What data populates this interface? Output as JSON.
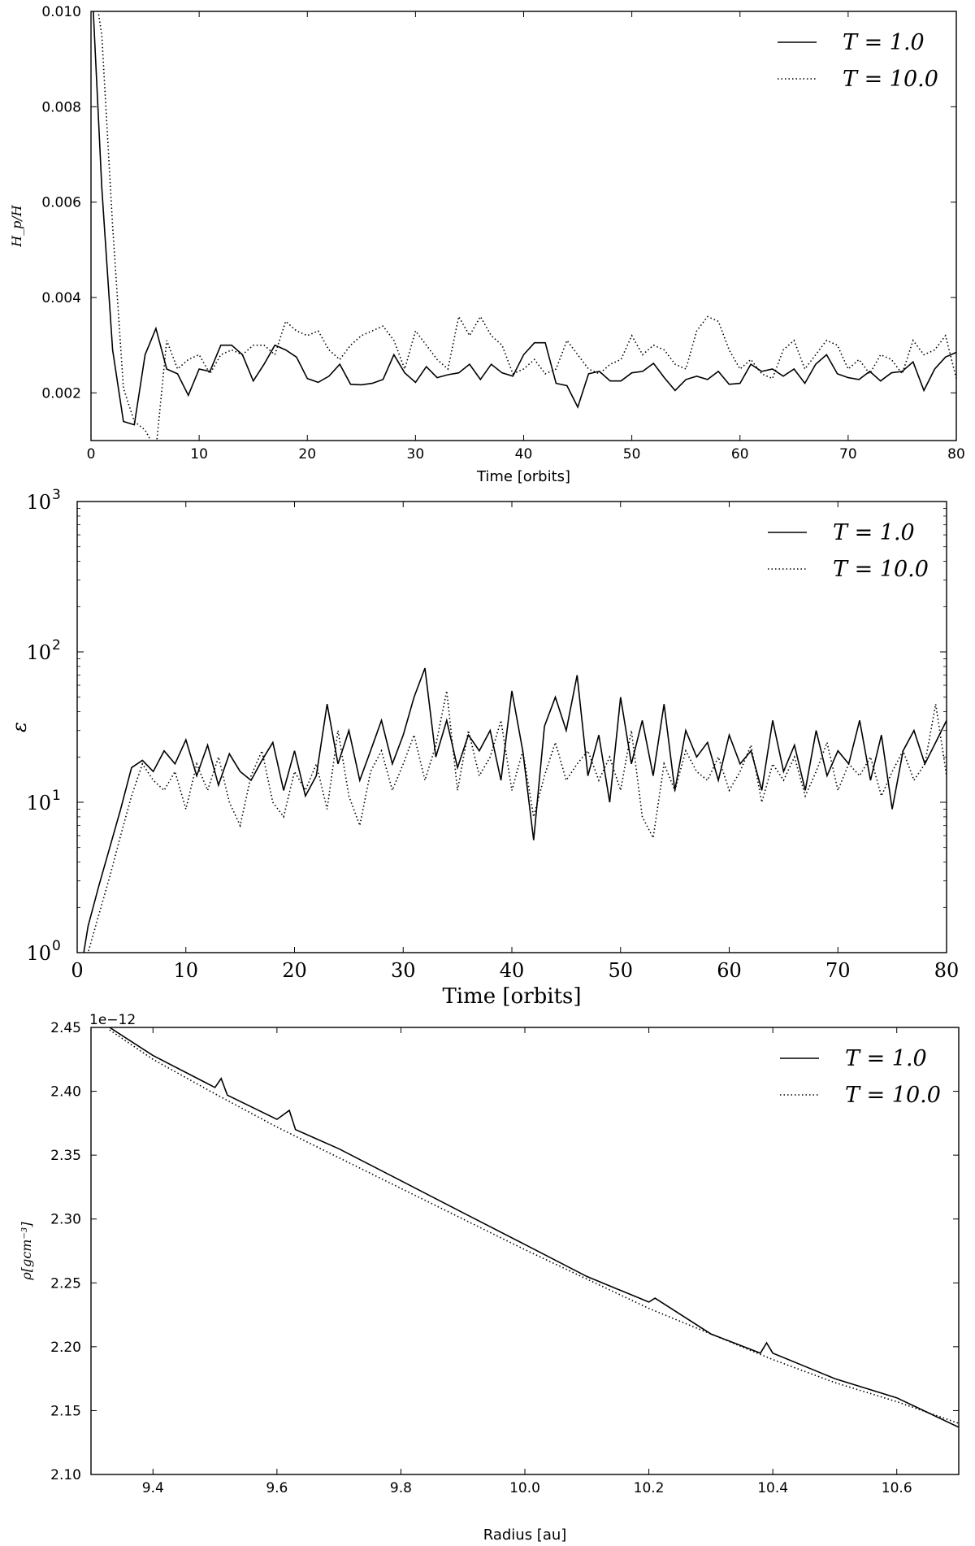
{
  "chart_data": [
    {
      "type": "line",
      "xlabel": "Time [orbits]",
      "ylabel": "H_p/H",
      "xlim": [
        0,
        80
      ],
      "ylim": [
        0.001,
        0.01
      ],
      "xticks": [
        "0",
        "10",
        "20",
        "30",
        "40",
        "50",
        "60",
        "70",
        "80"
      ],
      "yticks": [
        "0.002",
        "0.004",
        "0.006",
        "0.008",
        "0.010"
      ],
      "legend_position": "top-right",
      "series": [
        {
          "name": "T = 1.0",
          "style": "solid",
          "x": [
            0,
            1,
            2,
            3,
            4,
            5,
            6,
            7,
            8,
            9,
            10,
            11,
            12,
            13,
            14,
            15,
            16,
            17,
            18,
            19,
            20,
            21,
            22,
            23,
            24,
            25,
            26,
            27,
            28,
            29,
            30,
            31,
            32,
            33,
            34,
            35,
            36,
            37,
            38,
            39,
            40,
            41,
            42,
            43,
            44,
            45,
            46,
            47,
            48,
            49,
            50,
            51,
            52,
            53,
            54,
            55,
            56,
            57,
            58,
            59,
            60,
            61,
            62,
            63,
            64,
            65,
            66,
            67,
            68,
            69,
            70,
            71,
            72,
            73,
            74,
            75,
            76,
            77,
            78,
            79,
            80
          ],
          "values": [
            0.011,
            0.0063,
            0.0029,
            0.0014,
            0.00133,
            0.0028,
            0.00335,
            0.0025,
            0.0024,
            0.00195,
            0.0025,
            0.00245,
            0.003,
            0.003,
            0.0028,
            0.00225,
            0.0026,
            0.003,
            0.0029,
            0.00275,
            0.0023,
            0.00222,
            0.00235,
            0.0026,
            0.00218,
            0.00217,
            0.0022,
            0.00228,
            0.0028,
            0.00242,
            0.00222,
            0.00255,
            0.00232,
            0.00238,
            0.00242,
            0.0026,
            0.00228,
            0.0026,
            0.00242,
            0.00235,
            0.0028,
            0.00305,
            0.00305,
            0.0022,
            0.00215,
            0.0017,
            0.0024,
            0.00245,
            0.00225,
            0.00225,
            0.00242,
            0.00245,
            0.00262,
            0.00232,
            0.00205,
            0.00228,
            0.00235,
            0.00228,
            0.00245,
            0.00218,
            0.0022,
            0.0026,
            0.00245,
            0.0025,
            0.00235,
            0.0025,
            0.0022,
            0.0026,
            0.0028,
            0.0024,
            0.00232,
            0.00228,
            0.00245,
            0.00225,
            0.00242,
            0.00245,
            0.00265,
            0.00205,
            0.0025,
            0.00275,
            0.00285
          ]
        },
        {
          "name": "T = 10.0",
          "style": "dotted",
          "x": [
            0,
            1,
            2,
            3,
            4,
            5,
            6,
            7,
            8,
            9,
            10,
            11,
            12,
            13,
            14,
            15,
            16,
            17,
            18,
            19,
            20,
            21,
            22,
            23,
            24,
            25,
            26,
            27,
            28,
            29,
            30,
            31,
            32,
            33,
            34,
            35,
            36,
            37,
            38,
            39,
            40,
            41,
            42,
            43,
            44,
            45,
            46,
            47,
            48,
            49,
            50,
            51,
            52,
            53,
            54,
            55,
            56,
            57,
            58,
            59,
            60,
            61,
            62,
            63,
            64,
            65,
            66,
            67,
            68,
            69,
            70,
            71,
            72,
            73,
            74,
            75,
            76,
            77,
            78,
            79,
            80
          ],
          "values": [
            0.011,
            0.0095,
            0.0055,
            0.0021,
            0.0014,
            0.00122,
            0.0008,
            0.0031,
            0.0025,
            0.0027,
            0.0028,
            0.0024,
            0.0028,
            0.0029,
            0.0028,
            0.003,
            0.003,
            0.0028,
            0.0035,
            0.0033,
            0.0032,
            0.0033,
            0.0029,
            0.0027,
            0.003,
            0.0032,
            0.0033,
            0.0034,
            0.0031,
            0.0025,
            0.0033,
            0.003,
            0.0027,
            0.0025,
            0.0036,
            0.0032,
            0.0036,
            0.0032,
            0.003,
            0.0024,
            0.0025,
            0.0027,
            0.0024,
            0.0025,
            0.0031,
            0.0028,
            0.0025,
            0.0024,
            0.0026,
            0.0027,
            0.0032,
            0.0028,
            0.003,
            0.0029,
            0.0026,
            0.0025,
            0.0033,
            0.0036,
            0.0035,
            0.0029,
            0.0025,
            0.0027,
            0.0024,
            0.0023,
            0.0029,
            0.0031,
            0.0025,
            0.0028,
            0.0031,
            0.003,
            0.0025,
            0.0027,
            0.0024,
            0.0028,
            0.0027,
            0.0024,
            0.0031,
            0.0028,
            0.0029,
            0.0032,
            0.0023
          ]
        }
      ]
    },
    {
      "type": "line",
      "xlabel": "Time [orbits]",
      "ylabel": "ε",
      "xlim": [
        0,
        80
      ],
      "ylim": [
        1,
        1000
      ],
      "yscale": "log",
      "xticks": [
        "0",
        "10",
        "20",
        "30",
        "40",
        "50",
        "60",
        "70",
        "80"
      ],
      "yticks": [
        {
          "base": "10",
          "exp": "0"
        },
        {
          "base": "10",
          "exp": "1"
        },
        {
          "base": "10",
          "exp": "2"
        },
        {
          "base": "10",
          "exp": "3"
        }
      ],
      "legend_position": "top-right",
      "series": [
        {
          "name": "T = 1.0",
          "style": "solid",
          "x": [
            0.5,
            1,
            2,
            3,
            4,
            5,
            6,
            7,
            8,
            9,
            10,
            11,
            12,
            13,
            14,
            15,
            16,
            17,
            18,
            19,
            20,
            21,
            22,
            23,
            24,
            25,
            26,
            27,
            28,
            29,
            30,
            31,
            32,
            33,
            34,
            35,
            36,
            37,
            38,
            39,
            40,
            41,
            42,
            43,
            44,
            45,
            46,
            47,
            48,
            49,
            50,
            51,
            52,
            53,
            54,
            55,
            56,
            57,
            58,
            59,
            60,
            61,
            62,
            63,
            64,
            65,
            66,
            67,
            68,
            69,
            70,
            71,
            72,
            73,
            74,
            75,
            76,
            77,
            78,
            79,
            80
          ],
          "values": [
            0.9,
            1.5,
            2.8,
            5,
            9,
            17,
            19,
            16,
            22,
            18,
            26,
            15,
            24,
            13,
            21,
            16,
            14,
            19,
            25,
            12,
            22,
            11,
            15,
            45,
            18,
            30,
            14,
            22,
            35,
            18,
            28,
            50,
            78,
            20,
            35,
            17,
            28,
            22,
            30,
            14,
            55,
            22,
            5.6,
            32,
            50,
            30,
            70,
            15,
            28,
            10,
            50,
            18,
            35,
            15,
            45,
            12,
            30,
            20,
            25,
            14,
            28,
            18,
            22,
            12,
            35,
            16,
            24,
            12,
            30,
            15,
            22,
            18,
            35,
            14,
            28,
            9,
            22,
            30,
            18,
            25,
            35
          ]
        },
        {
          "name": "T = 10.0",
          "style": "dotted",
          "x": [
            0.5,
            1,
            2,
            3,
            4,
            5,
            6,
            7,
            8,
            9,
            10,
            11,
            12,
            13,
            14,
            15,
            16,
            17,
            18,
            19,
            20,
            21,
            22,
            23,
            24,
            25,
            26,
            27,
            28,
            29,
            30,
            31,
            32,
            33,
            34,
            35,
            36,
            37,
            38,
            39,
            40,
            41,
            42,
            43,
            44,
            45,
            46,
            47,
            48,
            49,
            50,
            51,
            52,
            53,
            54,
            55,
            56,
            57,
            58,
            59,
            60,
            61,
            62,
            63,
            64,
            65,
            66,
            67,
            68,
            69,
            70,
            71,
            72,
            73,
            74,
            75,
            76,
            77,
            78,
            79,
            80
          ],
          "values": [
            0.7,
            1,
            1.8,
            3.2,
            6,
            11,
            18,
            14,
            12,
            16,
            9,
            18,
            12,
            20,
            10,
            7,
            15,
            22,
            10,
            8,
            16,
            12,
            18,
            9,
            30,
            11,
            7,
            16,
            22,
            12,
            18,
            28,
            14,
            24,
            55,
            12,
            30,
            15,
            20,
            35,
            12,
            22,
            8,
            15,
            25,
            14,
            18,
            22,
            14,
            20,
            12,
            30,
            8,
            5.8,
            18,
            12,
            22,
            16,
            14,
            20,
            12,
            16,
            24,
            10,
            18,
            14,
            20,
            11,
            16,
            25,
            12,
            18,
            15,
            20,
            11,
            16,
            22,
            14,
            18,
            45,
            15
          ]
        }
      ]
    },
    {
      "type": "line",
      "xlabel": "Radius [au]",
      "ylabel": "ρ[gcm⁻³]",
      "y_offset_label": "1e−12",
      "xlim": [
        9.3,
        10.7
      ],
      "ylim": [
        2.1,
        2.45
      ],
      "xticks": [
        "9.4",
        "9.6",
        "9.8",
        "10.0",
        "10.2",
        "10.4",
        "10.6"
      ],
      "yticks": [
        "2.10",
        "2.15",
        "2.20",
        "2.25",
        "2.30",
        "2.35",
        "2.40",
        "2.45"
      ],
      "legend_position": "top-right",
      "series": [
        {
          "name": "T = 1.0",
          "style": "solid",
          "x": [
            9.33,
            9.4,
            9.5,
            9.51,
            9.52,
            9.6,
            9.62,
            9.63,
            9.7,
            9.8,
            9.9,
            10.0,
            10.1,
            10.2,
            10.21,
            10.3,
            10.38,
            10.39,
            10.4,
            10.5,
            10.6,
            10.7
          ],
          "values": [
            2.45,
            2.428,
            2.403,
            2.41,
            2.397,
            2.378,
            2.385,
            2.37,
            2.355,
            2.33,
            2.305,
            2.28,
            2.255,
            2.235,
            2.238,
            2.21,
            2.195,
            2.203,
            2.195,
            2.175,
            2.16,
            2.137
          ]
        },
        {
          "name": "T = 10.0",
          "style": "dotted",
          "x": [
            9.33,
            9.4,
            9.5,
            9.6,
            9.7,
            9.8,
            9.9,
            10.0,
            10.1,
            10.2,
            10.3,
            10.4,
            10.5,
            10.6,
            10.7
          ],
          "values": [
            2.448,
            2.425,
            2.398,
            2.372,
            2.348,
            2.324,
            2.3,
            2.276,
            2.253,
            2.23,
            2.21,
            2.19,
            2.172,
            2.157,
            2.14
          ]
        }
      ]
    }
  ]
}
